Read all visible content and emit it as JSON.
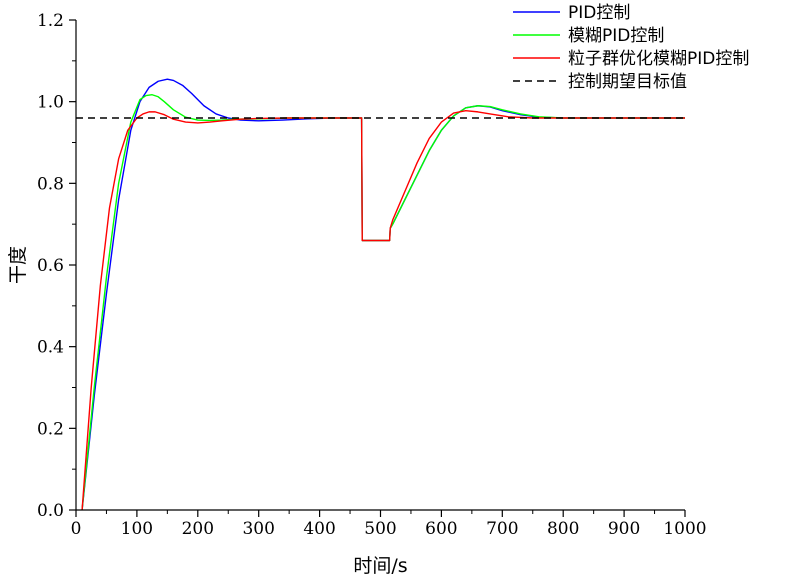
{
  "chart_data": {
    "type": "line",
    "xlabel": "时间/s",
    "ylabel": "干度",
    "xlim": [
      0,
      1000
    ],
    "ylim": [
      0,
      1.2
    ],
    "xticks": [
      0,
      100,
      200,
      300,
      400,
      500,
      600,
      700,
      800,
      900,
      1000
    ],
    "yticks": [
      0.0,
      0.2,
      0.4,
      0.6,
      0.8,
      1.0,
      1.2
    ],
    "xtick_labels": [
      "0",
      "100",
      "200",
      "300",
      "400",
      "500",
      "600",
      "700",
      "800",
      "900",
      "1000"
    ],
    "ytick_labels": [
      "0.0",
      "0.2",
      "0.4",
      "0.6",
      "0.8",
      "1.0",
      "1.2"
    ],
    "grid": false,
    "legend_position": "top-right",
    "series": [
      {
        "name": "PID控制",
        "color": "#0000ff",
        "dash": false,
        "x": [
          10,
          30,
          50,
          70,
          90,
          105,
          120,
          135,
          150,
          160,
          175,
          190,
          210,
          230,
          250,
          270,
          300,
          340,
          380,
          420,
          469,
          470,
          515,
          516,
          520,
          540,
          560,
          580,
          600,
          620,
          640,
          660,
          680,
          700,
          730,
          760,
          800,
          850,
          900,
          1000
        ],
        "y": [
          0.0,
          0.28,
          0.53,
          0.76,
          0.93,
          1.0,
          1.035,
          1.05,
          1.055,
          1.052,
          1.04,
          1.02,
          0.99,
          0.97,
          0.96,
          0.955,
          0.953,
          0.955,
          0.958,
          0.96,
          0.96,
          0.66,
          0.66,
          0.69,
          0.7,
          0.76,
          0.82,
          0.88,
          0.93,
          0.965,
          0.985,
          0.99,
          0.987,
          0.978,
          0.968,
          0.962,
          0.96,
          0.96,
          0.96,
          0.96
        ]
      },
      {
        "name": "模糊PID控制",
        "color": "#00ff00",
        "dash": false,
        "x": [
          10,
          30,
          50,
          70,
          90,
          105,
          115,
          125,
          135,
          145,
          160,
          180,
          200,
          220,
          240,
          260,
          300,
          350,
          400,
          469,
          470,
          515,
          516,
          520,
          540,
          560,
          580,
          600,
          620,
          640,
          660,
          680,
          700,
          730,
          760,
          800,
          900,
          1000
        ],
        "y": [
          0.0,
          0.3,
          0.57,
          0.8,
          0.95,
          1.005,
          1.015,
          1.017,
          1.012,
          1.0,
          0.98,
          0.962,
          0.955,
          0.954,
          0.955,
          0.957,
          0.958,
          0.96,
          0.96,
          0.96,
          0.66,
          0.66,
          0.69,
          0.7,
          0.76,
          0.82,
          0.88,
          0.93,
          0.965,
          0.985,
          0.99,
          0.988,
          0.98,
          0.97,
          0.963,
          0.96,
          0.96,
          0.96
        ]
      },
      {
        "name": "粒子群优化模糊PID控制",
        "color": "#ff0000",
        "dash": false,
        "x": [
          10,
          25,
          40,
          55,
          70,
          85,
          100,
          110,
          120,
          130,
          145,
          160,
          180,
          200,
          220,
          240,
          270,
          300,
          350,
          400,
          469,
          470,
          515,
          516,
          520,
          540,
          560,
          580,
          600,
          620,
          640,
          660,
          680,
          710,
          750,
          800,
          900,
          1000
        ],
        "y": [
          0.0,
          0.3,
          0.55,
          0.74,
          0.86,
          0.93,
          0.96,
          0.97,
          0.975,
          0.975,
          0.968,
          0.957,
          0.95,
          0.948,
          0.95,
          0.953,
          0.957,
          0.959,
          0.96,
          0.96,
          0.96,
          0.66,
          0.66,
          0.69,
          0.71,
          0.78,
          0.85,
          0.91,
          0.95,
          0.972,
          0.978,
          0.975,
          0.97,
          0.963,
          0.96,
          0.96,
          0.96,
          0.96
        ]
      },
      {
        "name": "控制期望目标值",
        "color": "#000000",
        "dash": true,
        "x": [
          0,
          1000
        ],
        "y": [
          0.96,
          0.96
        ]
      }
    ]
  }
}
